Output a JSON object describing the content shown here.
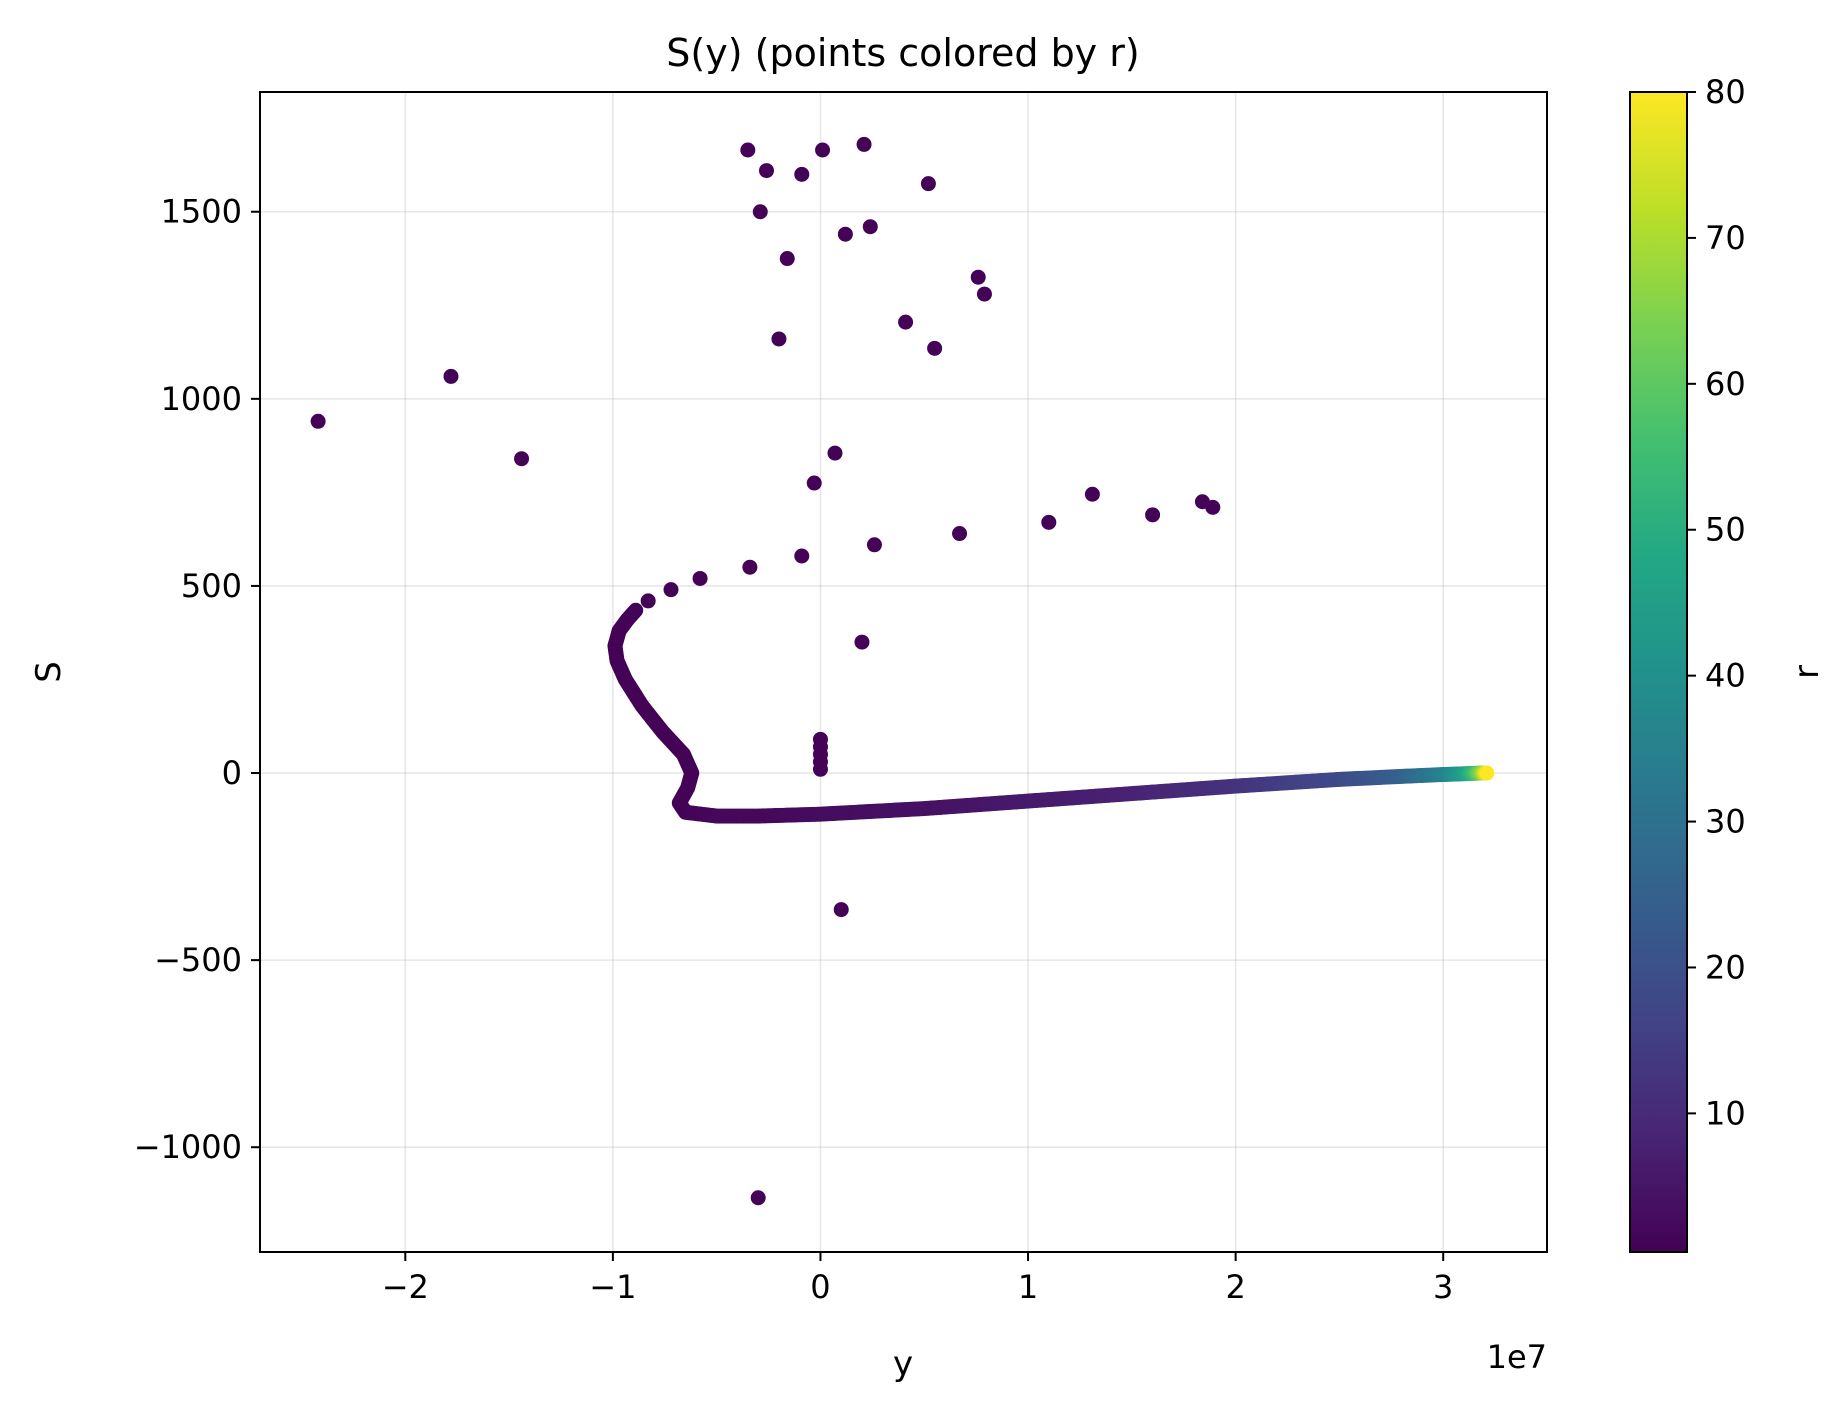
{
  "chart_data": {
    "type": "scatter",
    "title": "S(y) (points colored by r)",
    "xlabel": "y",
    "ylabel": "S",
    "x_offset_text": "1e7",
    "x_scale": 10000000,
    "xlim": [
      -27000000,
      35000000
    ],
    "ylim": [
      -1280,
      1820
    ],
    "x_ticks": [
      -20000000,
      -10000000,
      0,
      10000000,
      20000000,
      30000000
    ],
    "x_tick_labels": [
      "−2",
      "−1",
      "0",
      "1",
      "2",
      "3"
    ],
    "y_ticks": [
      -1000,
      -500,
      0,
      500,
      1000,
      1500
    ],
    "y_tick_labels": [
      "−1000",
      "−500",
      "0",
      "500",
      "1000",
      "1500"
    ],
    "grid": true,
    "colorbar": {
      "label": "r",
      "colormap": "viridis",
      "range": [
        0.5,
        80
      ],
      "ticks": [
        10,
        20,
        30,
        40,
        50,
        60,
        70,
        80
      ],
      "tick_labels": [
        "10",
        "20",
        "30",
        "40",
        "50",
        "60",
        "70",
        "80"
      ]
    },
    "scattered_points": [
      {
        "x": -24200000,
        "y": 940,
        "r": 1
      },
      {
        "x": -17800000,
        "y": 1060,
        "r": 1
      },
      {
        "x": -14400000,
        "y": 840,
        "r": 1
      },
      {
        "x": -3500000,
        "y": 1665,
        "r": 1
      },
      {
        "x": -2600000,
        "y": 1610,
        "r": 1
      },
      {
        "x": -900000,
        "y": 1600,
        "r": 1
      },
      {
        "x": 100000,
        "y": 1665,
        "r": 1
      },
      {
        "x": 2100000,
        "y": 1680,
        "r": 1
      },
      {
        "x": 5200000,
        "y": 1575,
        "r": 1
      },
      {
        "x": -2900000,
        "y": 1500,
        "r": 1
      },
      {
        "x": 1200000,
        "y": 1440,
        "r": 1
      },
      {
        "x": 2400000,
        "y": 1460,
        "r": 1
      },
      {
        "x": -1600000,
        "y": 1375,
        "r": 1
      },
      {
        "x": 7600000,
        "y": 1325,
        "r": 1
      },
      {
        "x": 7900000,
        "y": 1280,
        "r": 1
      },
      {
        "x": 4100000,
        "y": 1205,
        "r": 1
      },
      {
        "x": -2000000,
        "y": 1160,
        "r": 1
      },
      {
        "x": 5500000,
        "y": 1135,
        "r": 1
      },
      {
        "x": 700000,
        "y": 855,
        "r": 1
      },
      {
        "x": -300000,
        "y": 775,
        "r": 1
      },
      {
        "x": 13100000,
        "y": 745,
        "r": 1
      },
      {
        "x": 18400000,
        "y": 725,
        "r": 1
      },
      {
        "x": 18900000,
        "y": 710,
        "r": 1
      },
      {
        "x": 16000000,
        "y": 690,
        "r": 1
      },
      {
        "x": 11000000,
        "y": 670,
        "r": 1
      },
      {
        "x": 6700000,
        "y": 640,
        "r": 1
      },
      {
        "x": 2600000,
        "y": 610,
        "r": 1
      },
      {
        "x": -900000,
        "y": 580,
        "r": 1
      },
      {
        "x": -3400000,
        "y": 550,
        "r": 1
      },
      {
        "x": -5800000,
        "y": 520,
        "r": 1
      },
      {
        "x": -7200000,
        "y": 490,
        "r": 1
      },
      {
        "x": -8300000,
        "y": 460,
        "r": 1
      },
      {
        "x": 2000000,
        "y": 350,
        "r": 1
      },
      {
        "x": 1000000,
        "y": -365,
        "r": 1
      },
      {
        "x": -3000000,
        "y": -1135,
        "r": 1
      },
      {
        "x": 0,
        "y": 90,
        "r": 1
      },
      {
        "x": 0,
        "y": 70,
        "r": 1
      },
      {
        "x": 0,
        "y": 50,
        "r": 1
      },
      {
        "x": 0,
        "y": 30,
        "r": 1
      },
      {
        "x": 0,
        "y": 10,
        "r": 1
      }
    ],
    "curve_anchor_points": [
      {
        "x": -8900000,
        "y": 435,
        "r": 1
      },
      {
        "x": -9300000,
        "y": 410,
        "r": 1
      },
      {
        "x": -9700000,
        "y": 380,
        "r": 1
      },
      {
        "x": -9900000,
        "y": 340,
        "r": 1
      },
      {
        "x": -9800000,
        "y": 300,
        "r": 1
      },
      {
        "x": -9400000,
        "y": 250,
        "r": 1
      },
      {
        "x": -8600000,
        "y": 180,
        "r": 1
      },
      {
        "x": -7600000,
        "y": 110,
        "r": 1
      },
      {
        "x": -6600000,
        "y": 50,
        "r": 1
      },
      {
        "x": -6200000,
        "y": 0,
        "r": 1
      },
      {
        "x": -6400000,
        "y": -40,
        "r": 1
      },
      {
        "x": -6800000,
        "y": -80,
        "r": 1
      },
      {
        "x": -6500000,
        "y": -105,
        "r": 1
      },
      {
        "x": -5000000,
        "y": -115,
        "r": 2
      },
      {
        "x": -3000000,
        "y": -115,
        "r": 2
      },
      {
        "x": 0,
        "y": -110,
        "r": 3
      },
      {
        "x": 5000000,
        "y": -95,
        "r": 4
      },
      {
        "x": 10000000,
        "y": -75,
        "r": 6
      },
      {
        "x": 15000000,
        "y": -55,
        "r": 8
      },
      {
        "x": 20000000,
        "y": -35,
        "r": 12
      },
      {
        "x": 25000000,
        "y": -17,
        "r": 18
      },
      {
        "x": 28000000,
        "y": -9,
        "r": 25
      },
      {
        "x": 30000000,
        "y": -4,
        "r": 35
      },
      {
        "x": 31000000,
        "y": -2,
        "r": 45
      },
      {
        "x": 31500000,
        "y": -1,
        "r": 55
      },
      {
        "x": 31800000,
        "y": 0,
        "r": 65
      },
      {
        "x": 32100000,
        "y": 0,
        "r": 80
      }
    ]
  }
}
